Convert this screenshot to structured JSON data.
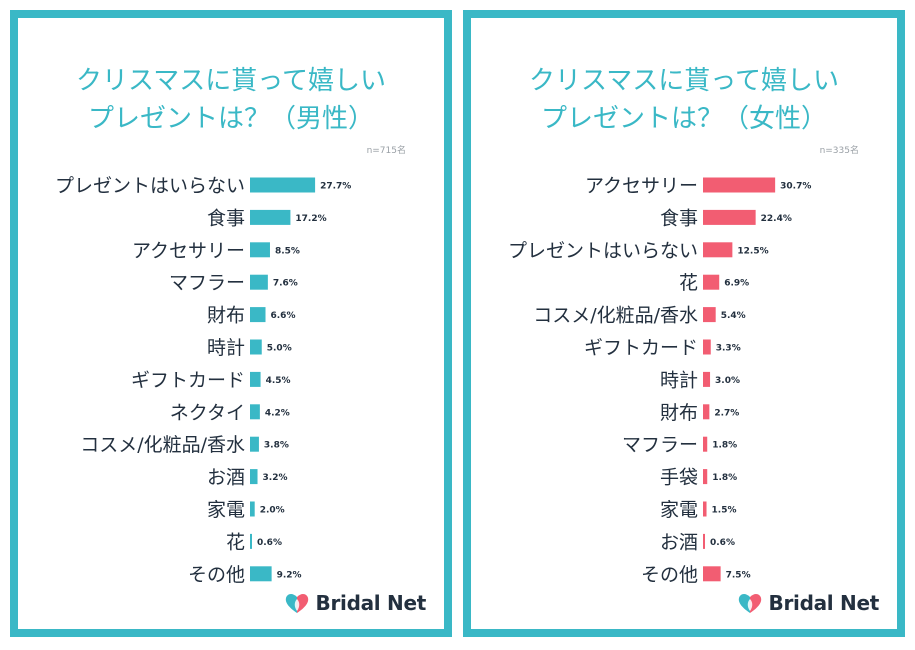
{
  "chart_data": [
    {
      "type": "bar",
      "orientation": "horizontal",
      "title_lines": [
        "クリスマスに貰って嬉しい",
        "プレゼントは？（男性）"
      ],
      "sample_note": "n=715名",
      "categories": [
        "プレゼントはいらない",
        "食事",
        "アクセサリー",
        "マフラー",
        "財布",
        "時計",
        "ギフトカード",
        "ネクタイ",
        "コスメ/化粧品/香水",
        "お酒",
        "家電",
        "花",
        "その他"
      ],
      "values": [
        27.7,
        17.2,
        8.5,
        7.6,
        6.6,
        5.0,
        4.5,
        4.2,
        3.8,
        3.2,
        2.0,
        0.6,
        9.2
      ],
      "value_labels": [
        "27.7%",
        "17.2%",
        "8.5%",
        "7.6%",
        "6.6%",
        "5.0%",
        "4.5%",
        "4.2%",
        "3.8%",
        "3.2%",
        "2.0%",
        "0.6%",
        "9.2%"
      ],
      "unit": "%",
      "bar_color": "#3ab8c6",
      "grid": false
    },
    {
      "type": "bar",
      "orientation": "horizontal",
      "title_lines": [
        "クリスマスに貰って嬉しい",
        "プレゼントは？（女性）"
      ],
      "sample_note": "n=335名",
      "categories": [
        "アクセサリー",
        "食事",
        "プレゼントはいらない",
        "花",
        "コスメ/化粧品/香水",
        "ギフトカード",
        "時計",
        "財布",
        "マフラー",
        "手袋",
        "家電",
        "お酒",
        "その他"
      ],
      "values": [
        30.7,
        22.4,
        12.5,
        6.9,
        5.4,
        3.3,
        3.0,
        2.7,
        1.8,
        1.8,
        1.5,
        0.6,
        7.5
      ],
      "value_labels": [
        "30.7%",
        "22.4%",
        "12.5%",
        "6.9%",
        "5.4%",
        "3.3%",
        "3.0%",
        "2.7%",
        "1.8%",
        "1.8%",
        "1.5%",
        "0.6%",
        "7.5%"
      ],
      "unit": "%",
      "bar_color": "#f25d72",
      "grid": false
    }
  ],
  "brand": {
    "name": "Bridal Net",
    "colors": {
      "frame": "#3ab8c6",
      "heart_left": "#3ab8c6",
      "heart_right": "#f25d72",
      "text": "#23303f"
    }
  }
}
